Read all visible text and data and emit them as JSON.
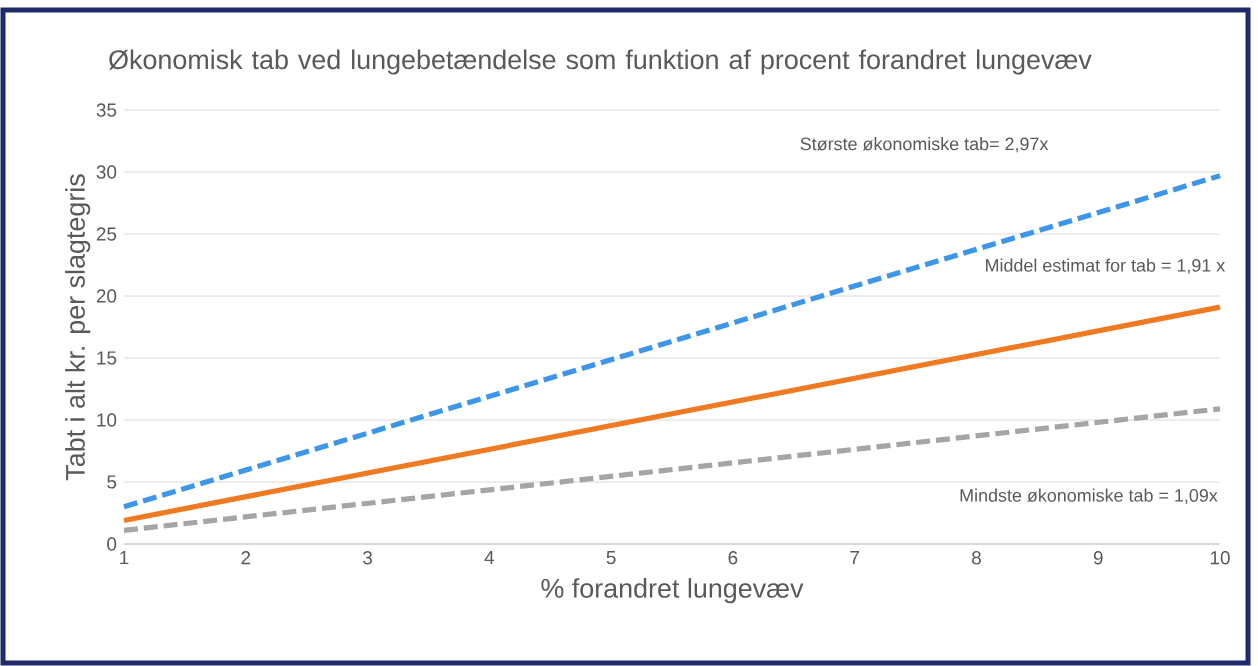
{
  "chart_data": {
    "type": "line",
    "title": "Økonomisk tab ved lungebetændelse  som funktion af procent forandret lungevæv",
    "xlabel": "% forandret lungevæv",
    "ylabel": "Tabt i alt kr. per slagtegris",
    "x": [
      1,
      10
    ],
    "series": [
      {
        "color": "#3d96e8",
        "values": [
          3.0,
          29.7
        ],
        "line_style": "dashed"
      },
      {
        "color": "#f07a22",
        "values": [
          1.9,
          19.1
        ],
        "line_style": "solid"
      },
      {
        "color": "#a5a5a5",
        "values": [
          1.1,
          10.9
        ],
        "line_style": "dashed"
      }
    ],
    "annotations": [
      "Største økonomiske tab= 2,97x",
      "Middel estimat for tab = 1,91 x",
      "Mindste økonomiske tab  = 1,09x"
    ],
    "xlim": [
      1,
      10
    ],
    "xticks": [
      1,
      2,
      3,
      4,
      5,
      6,
      7,
      8,
      9,
      10
    ],
    "ylim": [
      0,
      35
    ],
    "yticks": [
      0,
      5,
      10,
      15,
      20,
      25,
      30,
      35
    ],
    "grid": "y",
    "marker": "none"
  }
}
